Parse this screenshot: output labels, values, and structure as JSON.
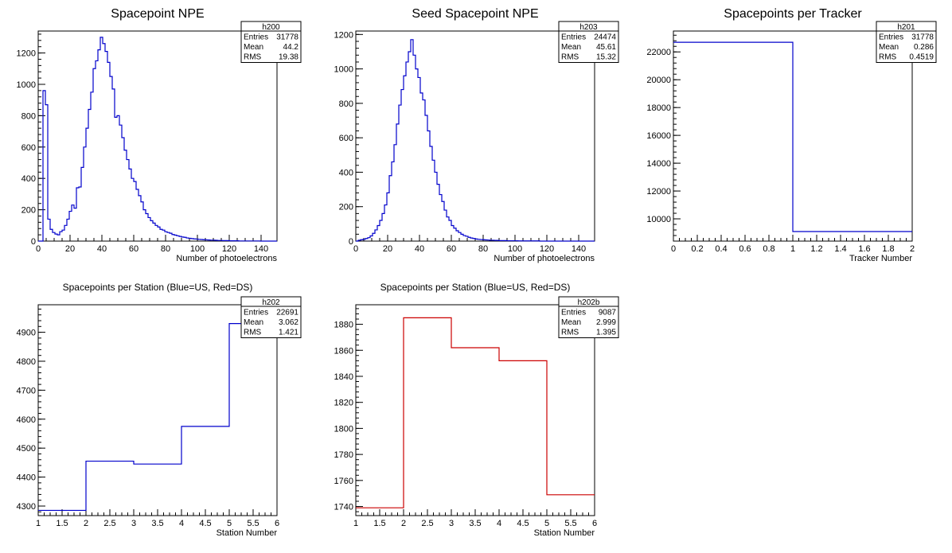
{
  "chart_data": [
    {
      "type": "histogram",
      "title": "Spacepoint NPE",
      "xlabel": "Number of photoelectrons",
      "ylabel": "",
      "xlim": [
        0,
        150
      ],
      "ylim": [
        0,
        1340
      ],
      "xticks": [
        0,
        20,
        40,
        60,
        80,
        100,
        120,
        140
      ],
      "yticks": [
        0,
        200,
        400,
        600,
        800,
        1000,
        1200
      ],
      "bin_start": 0,
      "bin_width": 1.5,
      "values": [
        0,
        0,
        960,
        870,
        140,
        75,
        55,
        45,
        40,
        60,
        70,
        100,
        140,
        190,
        230,
        210,
        340,
        345,
        470,
        600,
        720,
        840,
        950,
        1100,
        1150,
        1220,
        1300,
        1260,
        1210,
        1140,
        1050,
        970,
        790,
        800,
        740,
        660,
        580,
        520,
        460,
        400,
        380,
        330,
        290,
        250,
        200,
        175,
        150,
        130,
        115,
        100,
        90,
        75,
        70,
        60,
        55,
        50,
        42,
        38,
        34,
        30,
        26,
        24,
        20,
        18,
        16,
        14,
        13,
        11,
        10,
        9,
        8,
        7,
        6,
        6,
        5,
        4,
        4,
        3,
        3,
        3,
        2,
        2,
        2,
        2,
        1,
        1,
        1,
        1,
        1,
        1,
        1,
        1,
        1,
        0,
        0,
        0,
        0,
        0,
        0,
        0
      ],
      "color": "#0000cc",
      "stats": {
        "name": "h200",
        "rows": [
          [
            "Entries",
            "31778"
          ],
          [
            "Mean",
            "44.2"
          ],
          [
            "RMS",
            "19.38"
          ]
        ]
      }
    },
    {
      "type": "histogram",
      "title": "Seed Spacepoint NPE",
      "xlabel": "Number of photoelectrons",
      "ylabel": "",
      "xlim": [
        0,
        150
      ],
      "ylim": [
        0,
        1220
      ],
      "xticks": [
        0,
        20,
        40,
        60,
        80,
        100,
        120,
        140
      ],
      "yticks": [
        0,
        200,
        400,
        600,
        800,
        1000,
        1200
      ],
      "bin_start": 0,
      "bin_width": 1.5,
      "values": [
        0,
        5,
        8,
        10,
        15,
        20,
        30,
        45,
        65,
        90,
        120,
        160,
        210,
        280,
        380,
        460,
        560,
        680,
        790,
        880,
        960,
        1040,
        1100,
        1170,
        1080,
        1000,
        950,
        860,
        820,
        730,
        640,
        550,
        470,
        400,
        330,
        270,
        230,
        180,
        140,
        120,
        90,
        75,
        60,
        50,
        40,
        32,
        28,
        22,
        18,
        15,
        12,
        10,
        9,
        8,
        7,
        6,
        5,
        5,
        4,
        4,
        3,
        3,
        3,
        2,
        2,
        2,
        2,
        2,
        1,
        1,
        1,
        1,
        1,
        1,
        1,
        1,
        1,
        0,
        0,
        0,
        0,
        0,
        0,
        0,
        0,
        0,
        0,
        0,
        0,
        0,
        0,
        0,
        0,
        0,
        0,
        0,
        0,
        0,
        0,
        0
      ],
      "color": "#0000cc",
      "stats": {
        "name": "h203",
        "rows": [
          [
            "Entries",
            "24474"
          ],
          [
            "Mean",
            "45.61"
          ],
          [
            "RMS",
            "15.32"
          ]
        ]
      }
    },
    {
      "type": "histogram",
      "title": "Spacepoints per Tracker",
      "xlabel": "Tracker Number",
      "ylabel": "",
      "xlim": [
        0,
        2
      ],
      "ylim": [
        8400,
        23500
      ],
      "xticks": [
        0,
        0.2,
        0.4,
        0.6,
        0.8,
        1,
        1.2,
        1.4,
        1.6,
        1.8,
        2
      ],
      "xtick_labels": [
        "0",
        "0.2",
        "0.4",
        "0.6",
        "0.8",
        "1",
        "1.2",
        "1.4",
        "1.6",
        "1.8",
        "2"
      ],
      "yticks": [
        10000,
        12000,
        14000,
        16000,
        18000,
        20000,
        22000
      ],
      "bin_start": 0,
      "bin_width": 1,
      "values": [
        22691,
        9087
      ],
      "color": "#0000cc",
      "stats": {
        "name": "h201",
        "rows": [
          [
            "Entries",
            "31778"
          ],
          [
            "Mean",
            "0.286"
          ],
          [
            "RMS",
            "0.4519"
          ]
        ]
      }
    },
    {
      "type": "histogram",
      "title": "Spacepoints per Station (Blue=US, Red=DS)",
      "xlabel": "Station Number",
      "ylabel": "",
      "xlim": [
        1,
        6
      ],
      "ylim": [
        4267,
        4995
      ],
      "xticks": [
        1,
        1.5,
        2,
        2.5,
        3,
        3.5,
        4,
        4.5,
        5,
        5.5,
        6
      ],
      "xtick_labels": [
        "1",
        "1.5",
        "2",
        "2.5",
        "3",
        "3.5",
        "4",
        "4.5",
        "5",
        "5.5",
        "6"
      ],
      "yticks": [
        4300,
        4400,
        4500,
        4600,
        4700,
        4800,
        4900
      ],
      "bin_start": 1,
      "bin_width": 1,
      "values": [
        4285,
        4455,
        4445,
        4575,
        4930
      ],
      "color": "#0000cc",
      "stats": {
        "name": "h202",
        "rows": [
          [
            "Entries",
            "22691"
          ],
          [
            "Mean",
            "3.062"
          ],
          [
            "RMS",
            "1.421"
          ]
        ]
      }
    },
    {
      "type": "histogram",
      "title": "Spacepoints per Station (Blue=US, Red=DS)",
      "xlabel": "Station Number",
      "ylabel": "",
      "xlim": [
        1,
        6
      ],
      "ylim": [
        1733,
        1895
      ],
      "xticks": [
        1,
        1.5,
        2,
        2.5,
        3,
        3.5,
        4,
        4.5,
        5,
        5.5,
        6
      ],
      "xtick_labels": [
        "1",
        "1.5",
        "2",
        "2.5",
        "3",
        "3.5",
        "4",
        "4.5",
        "5",
        "5.5",
        "6"
      ],
      "yticks": [
        1740,
        1760,
        1780,
        1800,
        1820,
        1840,
        1860,
        1880
      ],
      "bin_start": 1,
      "bin_width": 1,
      "values": [
        1739,
        1885,
        1862,
        1852,
        1749
      ],
      "color": "#cc0000",
      "stats": {
        "name": "h202b",
        "rows": [
          [
            "Entries",
            "9087"
          ],
          [
            "Mean",
            "2.999"
          ],
          [
            "RMS",
            "1.395"
          ]
        ]
      }
    }
  ]
}
